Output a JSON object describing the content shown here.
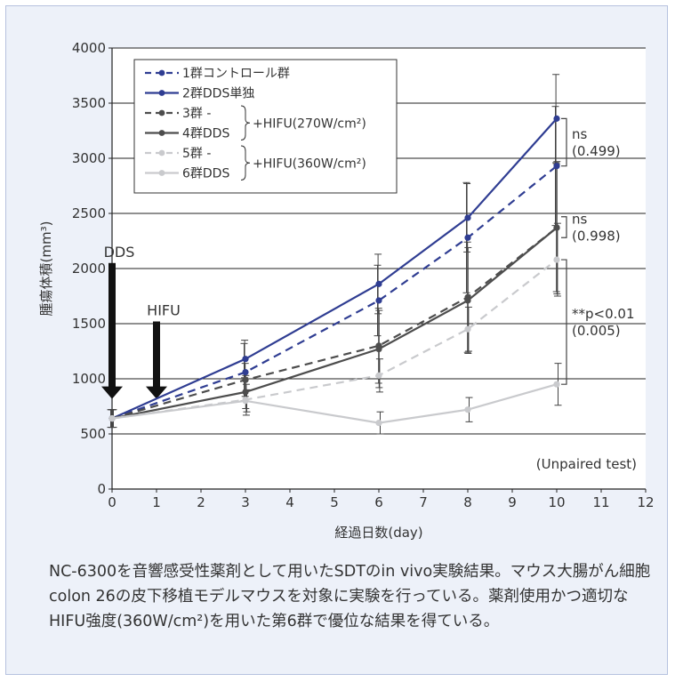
{
  "colors": {
    "panel_bg": "#edf1f9",
    "grid": "#222222",
    "blue": "#2f3d92",
    "dark_gray": "#4d4d4d",
    "light_gray": "#c9cacd"
  },
  "chart_data": {
    "type": "line",
    "xlabel": "経過日数(day)",
    "ylabel": "腫瘍体積(mm³)",
    "xlim": [
      0,
      12
    ],
    "ylim": [
      0,
      4000
    ],
    "xticks": [
      0,
      1,
      2,
      3,
      4,
      5,
      6,
      7,
      8,
      9,
      10,
      11,
      12
    ],
    "yticks": [
      0,
      500,
      1000,
      1500,
      2000,
      2500,
      3000,
      3500,
      4000
    ],
    "grid": "horizontal",
    "legend_position": "top-left",
    "x": [
      0,
      3,
      6,
      8,
      10
    ],
    "series": [
      {
        "name": "1群コントロール群",
        "color": "#2f3d92",
        "dash": true,
        "values": [
          640,
          1060,
          1710,
          2280,
          2930
        ],
        "errors": [
          80,
          260,
          320,
          500,
          540
        ]
      },
      {
        "name": "2群DDS単独",
        "color": "#2f3d92",
        "dash": false,
        "values": [
          640,
          1180,
          1860,
          2460,
          3360
        ],
        "errors": [
          80,
          170,
          270,
          310,
          400
        ]
      },
      {
        "name": "3群 -",
        "color": "#4d4d4d",
        "dash": true,
        "values": [
          640,
          990,
          1300,
          1740,
          2370
        ],
        "errors": [
          80,
          150,
          340,
          500,
          580
        ]
      },
      {
        "name": "4群DDS",
        "color": "#4d4d4d",
        "dash": false,
        "values": [
          640,
          880,
          1270,
          1710,
          2370
        ],
        "errors": [
          80,
          150,
          350,
          480,
          600
        ]
      },
      {
        "name": "5群 -",
        "color": "#c9cacd",
        "dash": true,
        "values": [
          640,
          810,
          1030,
          1450,
          2080
        ],
        "errors": [
          80,
          140,
          150,
          200,
          330
        ]
      },
      {
        "name": "6群DDS",
        "color": "#c9cacd",
        "dash": false,
        "values": [
          640,
          800,
          600,
          720,
          950
        ],
        "errors": [
          80,
          100,
          100,
          110,
          190
        ]
      }
    ],
    "legend_brace_labels": [
      "+HIFU(270W/cm²)",
      "+HIFU(360W/cm²)"
    ],
    "annotations": {
      "dds_arrow": {
        "label": "DDS",
        "day": 0
      },
      "hifu_arrow": {
        "label": "HIFU",
        "day": 1
      },
      "sig1": {
        "label": "ns",
        "sub": "(0.499)"
      },
      "sig2": {
        "label": "ns",
        "sub": "(0.998)"
      },
      "sig3": {
        "label": "**p<0.01",
        "sub": "(0.005)"
      },
      "test_note": "(Unpaired test)"
    }
  },
  "caption": "NC-6300を音響感受性薬剤として用いたSDTのin vivo実験結果。マウス大腸がん細胞colon 26の皮下移植モデルマウスを対象に実験を行っている。薬剤使用かつ適切なHIFU強度(360W/cm²)を用いた第6群で優位な結果を得ている。"
}
